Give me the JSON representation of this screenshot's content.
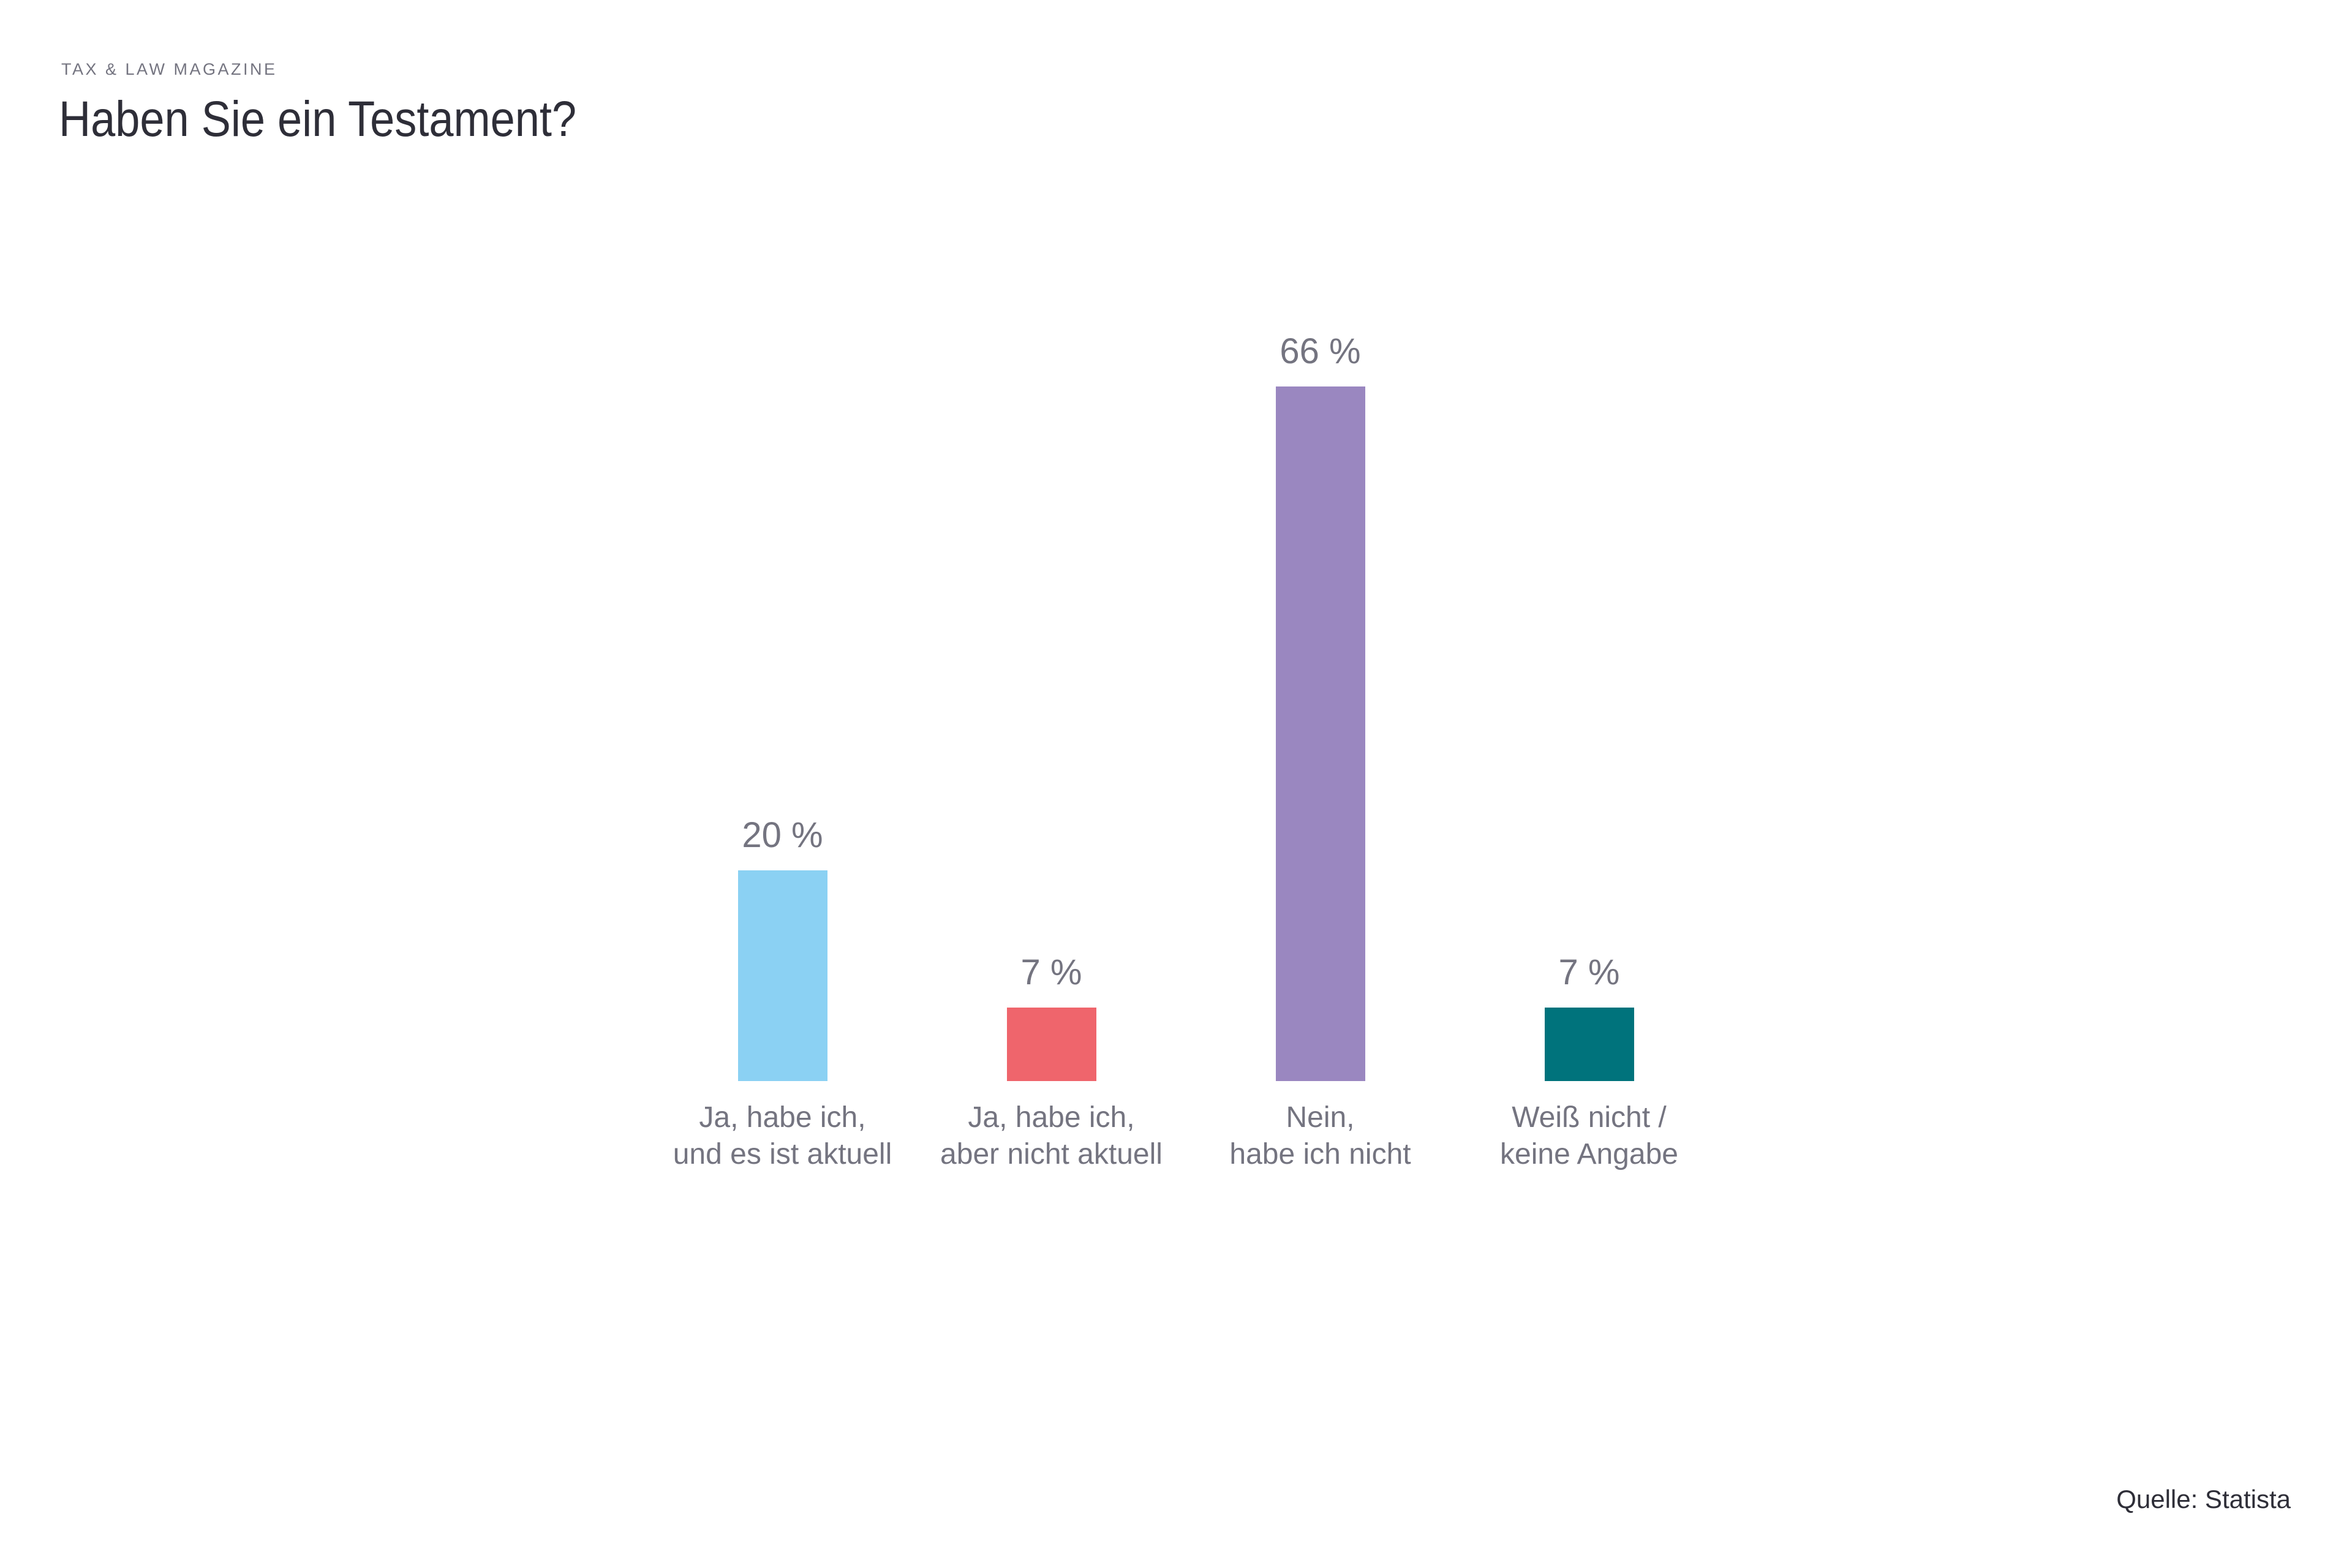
{
  "header": {
    "eyebrow": "TAX & LAW MAGAZINE",
    "title": "Haben Sie ein Testament?"
  },
  "source": {
    "label": "Quelle: Statista"
  },
  "chart_data": {
    "type": "bar",
    "title": "Haben Sie ein Testament?",
    "unit": "%",
    "ylim": [
      0,
      100
    ],
    "grid": false,
    "axes_visible": false,
    "legend": "none",
    "categories": [
      [
        "Ja, habe ich,",
        "und es ist aktuell"
      ],
      [
        "Ja, habe ich,",
        "aber nicht aktuell"
      ],
      [
        "Nein,",
        "habe ich nicht"
      ],
      [
        "Weiß nicht /",
        "keine Angabe"
      ]
    ],
    "values": [
      20,
      7,
      66,
      7
    ],
    "value_labels": [
      "20 %",
      "7 %",
      "66 %",
      "7 %"
    ],
    "bar_colors": [
      "#8BD1F3",
      "#EF656C",
      "#9A87C0",
      "#00737C"
    ],
    "label_color": "#747480",
    "title_color": "#2e2e38"
  }
}
